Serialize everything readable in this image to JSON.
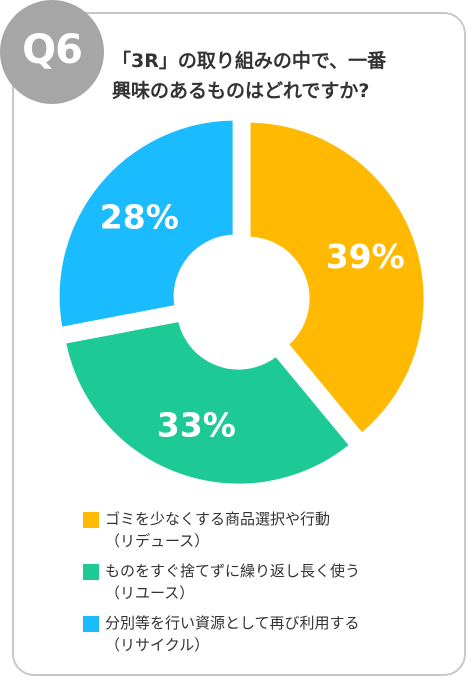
{
  "badge": {
    "label": "Q6"
  },
  "question": {
    "line1": "「3R」の取り組みの中で、一番",
    "line2": "興味のあるものはどれですか?"
  },
  "colors": {
    "reduce": "#FFB900",
    "reuse": "#1DC995",
    "recycle": "#1ABCFF",
    "badge": "#A6A6A6"
  },
  "chart_data": {
    "type": "pie",
    "donut": true,
    "categories": [
      "ゴミを少なくする商品選択や行動（リデュース）",
      "ものをすぐ捨てずに繰り返し長く使う（リユース）",
      "分別等を行い資源として再び利用する（リサイクル）"
    ],
    "values": [
      39,
      33,
      28
    ],
    "labels": [
      "39%",
      "33%",
      "28%"
    ],
    "colors": [
      "#FFB900",
      "#1DC995",
      "#1ABCFF"
    ]
  },
  "legend": [
    {
      "label": "ゴミを少なくする商品選択や行動",
      "sub": "（リデュース）",
      "color": "#FFB900"
    },
    {
      "label": "ものをすぐ捨てずに繰り返し長く使う",
      "sub": "（リユース）",
      "color": "#1DC995"
    },
    {
      "label": "分別等を行い資源として再び利用する",
      "sub": "（リサイクル）",
      "color": "#1ABCFF"
    }
  ]
}
